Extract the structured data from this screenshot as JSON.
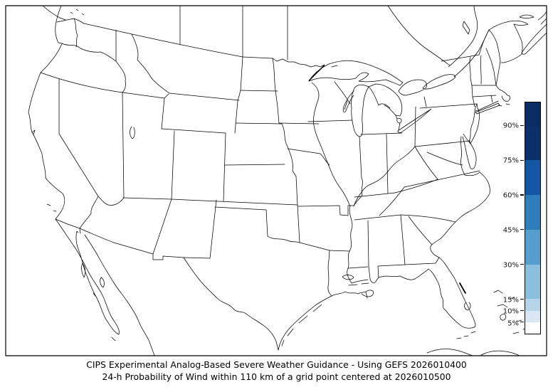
{
  "figure": {
    "background": "#ffffff",
    "frame_color": "#000000",
    "map_line_color": "#000000",
    "field_note": "probability field entirely below lowest 5% threshold; map area unshaded"
  },
  "caption": {
    "line1": "CIPS Experimental Analog-Based Severe Weather Guidance - Using GEFS 2026010400",
    "line2": "24-h Probability of Wind within 110 km of a grid point centered at 2026010500"
  },
  "colorbar": {
    "unit": "%",
    "min": 0,
    "max": 100,
    "ticks": [
      {
        "label": "90%",
        "value": 90
      },
      {
        "label": "75%",
        "value": 75
      },
      {
        "label": "60%",
        "value": 60
      },
      {
        "label": "45%",
        "value": 45
      },
      {
        "label": "30%",
        "value": 30
      },
      {
        "label": "15%",
        "value": 15
      },
      {
        "label": "10%",
        "value": 10
      },
      {
        "label": "5%",
        "value": 5
      }
    ],
    "segments": [
      {
        "from": 90,
        "to": 100,
        "color": "#092d63"
      },
      {
        "from": 75,
        "to": 90,
        "color": "#0b3069"
      },
      {
        "from": 60,
        "to": 75,
        "color": "#1257a4"
      },
      {
        "from": 45,
        "to": 60,
        "color": "#2e7ebc"
      },
      {
        "from": 30,
        "to": 45,
        "color": "#539ecd"
      },
      {
        "from": 15,
        "to": 30,
        "color": "#8abfdd"
      },
      {
        "from": 10,
        "to": 15,
        "color": "#b5d4ea"
      },
      {
        "from": 5,
        "to": 10,
        "color": "#d9e7f5"
      },
      {
        "from": 0,
        "to": 5,
        "color": "#ffffff"
      }
    ]
  },
  "map_data": {
    "type": "map",
    "region": "Contiguous United States with southern Canada, northern Mexico, Bahamas and Cuba",
    "layers": [
      "national borders",
      "state and province borders",
      "coastlines",
      "Great Lakes"
    ],
    "shaded_areas": []
  }
}
